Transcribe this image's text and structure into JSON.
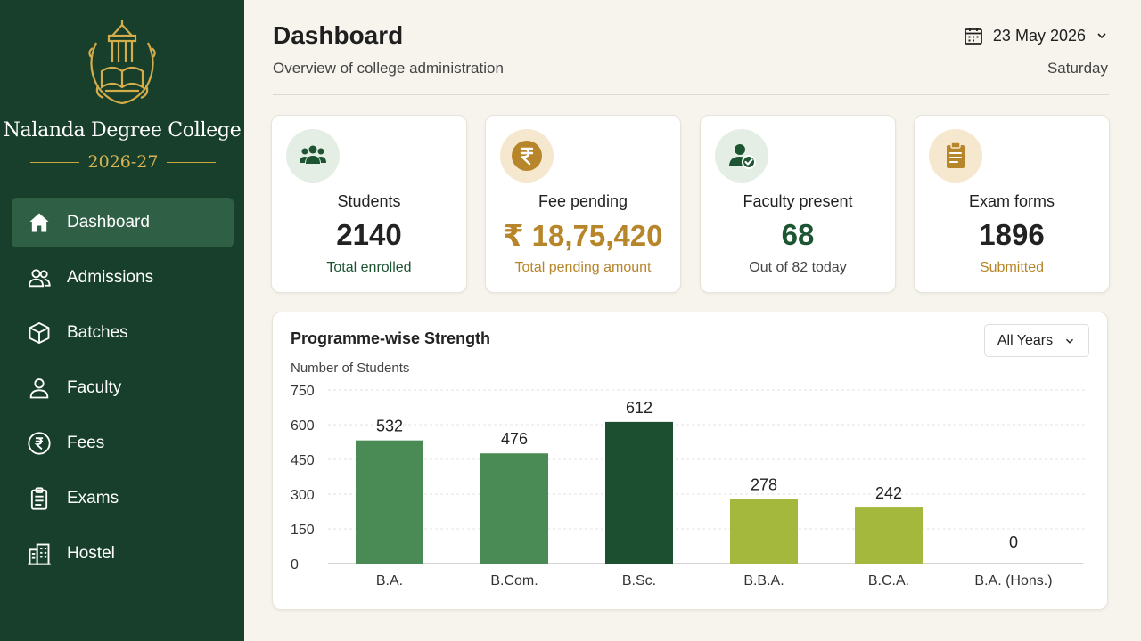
{
  "sidebar": {
    "college_name": "Nalanda Degree College",
    "session": "2026-27",
    "items": [
      {
        "label": "Dashboard",
        "icon": "home-icon",
        "active": true
      },
      {
        "label": "Admissions",
        "icon": "users-icon"
      },
      {
        "label": "Batches",
        "icon": "cube-icon"
      },
      {
        "label": "Faculty",
        "icon": "person-icon"
      },
      {
        "label": "Fees",
        "icon": "rupee-icon"
      },
      {
        "label": "Exams",
        "icon": "clipboard-icon"
      },
      {
        "label": "Hostel",
        "icon": "building-icon"
      }
    ]
  },
  "header": {
    "title": "Dashboard",
    "subtitle": "Overview of college administration",
    "date": "23 May 2026",
    "weekday": "Saturday"
  },
  "stats": [
    {
      "label": "Students",
      "value": "2140",
      "sub": "Total enrolled",
      "icon": "students-icon"
    },
    {
      "label": "Fee pending",
      "value": "₹ 18,75,420",
      "sub": "Total pending amount",
      "icon": "rupee-coin-icon"
    },
    {
      "label": "Faculty present",
      "value": "68",
      "sub": "Out of 82 today",
      "icon": "faculty-check-icon"
    },
    {
      "label": "Exam forms",
      "value": "1896",
      "sub": "Submitted",
      "icon": "clipboard-icon"
    }
  ],
  "colors": {
    "sidebar_bg": "#173f2b",
    "accent_gold": "#b8862a",
    "accent_green": "#1d5533",
    "bar_green": "#4a8b55",
    "bar_dark_green": "#1c4f30",
    "bar_olive": "#a3b83c"
  },
  "chart_filter": "All Years",
  "chart_data": {
    "type": "bar",
    "title": "Programme-wise Strength",
    "ylabel": "Number of Students",
    "xlabel": "",
    "categories": [
      "B.A.",
      "B.Com.",
      "B.Sc.",
      "B.B.A.",
      "B.C.A.",
      "B.A. (Hons.)"
    ],
    "values": [
      532,
      476,
      612,
      278,
      242,
      0
    ],
    "bar_colors": [
      "#4a8b55",
      "#4a8b55",
      "#1c4f30",
      "#a3b83c",
      "#a3b83c",
      "#a3b83c"
    ],
    "ylim": [
      0,
      750
    ],
    "yticks": [
      0,
      150,
      300,
      450,
      600,
      750
    ],
    "grid": true
  }
}
